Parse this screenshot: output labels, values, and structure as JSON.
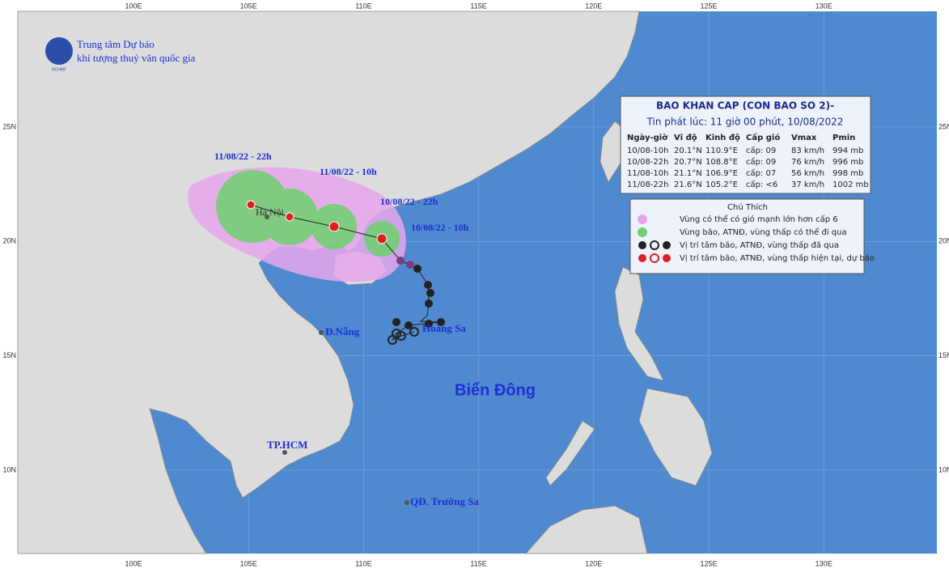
{
  "header": {
    "org_line1": "Trung tâm Dự báo",
    "org_line2": "khí tượng thuỷ văn quốc gia",
    "logo_text": "NCHMF"
  },
  "longitude_labels": [
    "100E",
    "105E",
    "110E",
    "115E",
    "120E",
    "125E",
    "130E"
  ],
  "latitude_labels": [
    "25N",
    "20N",
    "15N",
    "10N"
  ],
  "places": [
    "Hà Nội",
    "Đ.Nẵng",
    "Hoàng Sa",
    "TP.HCM",
    "QĐ. Trường Sa"
  ],
  "track_labels": [
    "11/08/22 - 22h",
    "11/08/22 - 10h",
    "10/08/22 - 22h",
    "10/08/22 - 10h"
  ],
  "sea_label": "Biển Đông",
  "info_box": {
    "title": "BAO KHAN CAP (CON BAO SO 2)-",
    "issued": "Tin phát lúc: 11 giờ 00 phút, 10/08/2022",
    "columns": [
      "Ngày-giờ",
      "Vĩ độ",
      "Kinh độ",
      "Cấp gió",
      "Vmax",
      "Pmin"
    ],
    "rows": [
      [
        "10/08-10h",
        "20.1°N",
        "110.9°E",
        "cấp: 09",
        "83 km/h",
        "994 mb"
      ],
      [
        "10/08-22h",
        "20.7°N",
        "108.8°E",
        "cấp: 09",
        "76 km/h",
        "996 mb"
      ],
      [
        "11/08-10h",
        "21.1°N",
        "106.9°E",
        "cấp: 07",
        "56 km/h",
        "998 mb"
      ],
      [
        "11/08-22h",
        "21.6°N",
        "105.2°E",
        "cấp: <6",
        "37 km/h",
        "1002 mb"
      ]
    ]
  },
  "legend": {
    "title": "Chú Thích",
    "items": [
      "Vùng có thể có gió mạnh lớn hơn cấp 6",
      "Vùng bão, ATNĐ, vùng thấp có thể đi qua",
      "Vị trí tâm bão, ATNĐ, vùng thấp đã qua",
      "Vị trí tâm bão, ATNĐ, vùng thấp hiện tại, dự báo"
    ]
  }
}
